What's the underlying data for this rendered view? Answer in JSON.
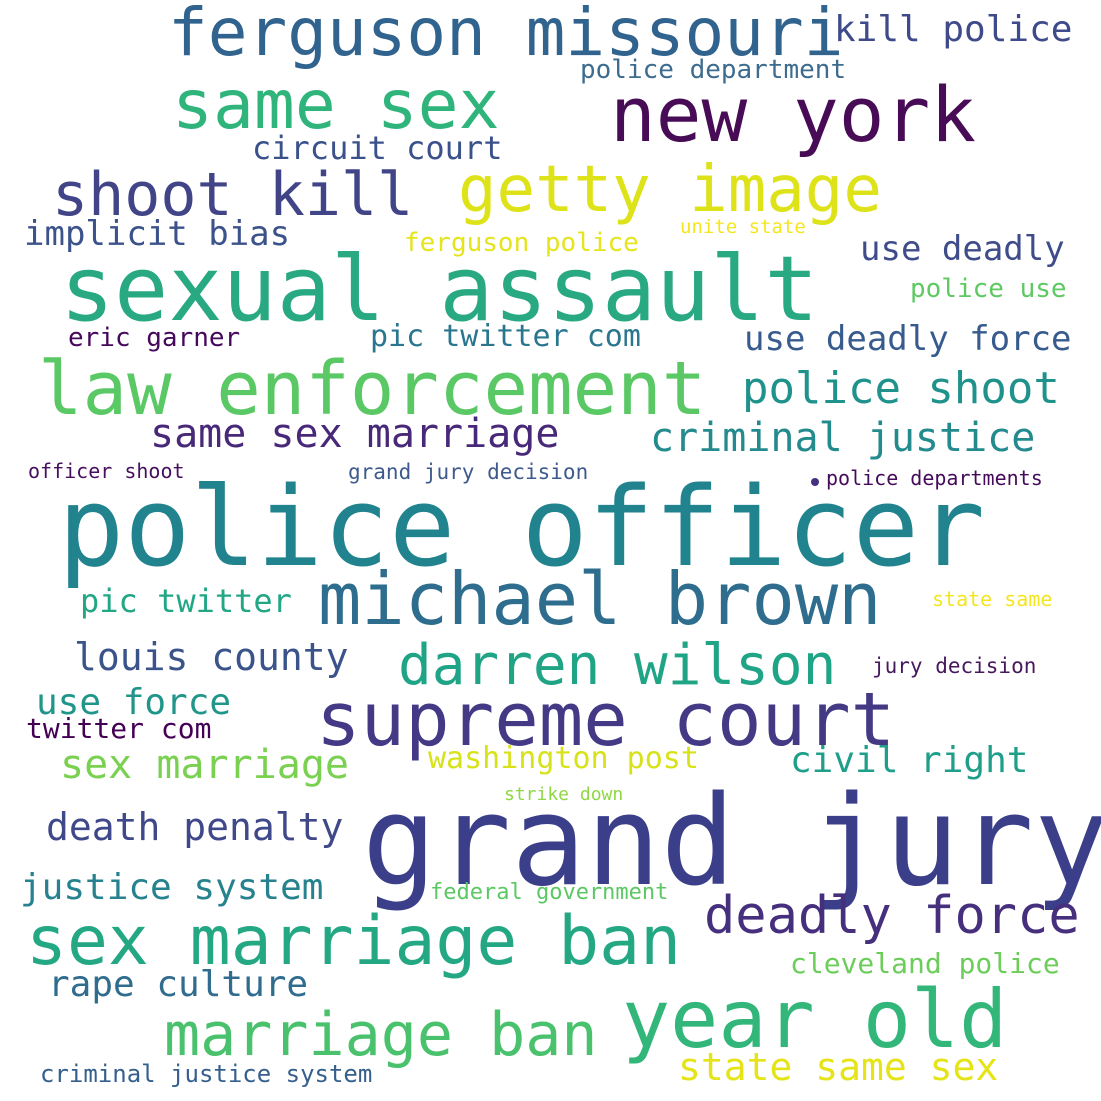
{
  "wordcloud": {
    "background": "#ffffff",
    "words": [
      {
        "text": "police officer",
        "color": "#21838e"
      },
      {
        "text": "grand jury",
        "color": "#3b3f8a"
      },
      {
        "text": "sexual assault",
        "color": "#29a981"
      },
      {
        "text": "law enforcement",
        "color": "#5ac864"
      },
      {
        "text": "supreme court",
        "color": "#433985"
      },
      {
        "text": "new york",
        "color": "#470c55"
      },
      {
        "text": "michael brown",
        "color": "#2e6d8e"
      },
      {
        "text": "year old",
        "color": "#32b67a"
      },
      {
        "text": "ferguson missouri",
        "color": "#30638e"
      },
      {
        "text": "same sex",
        "color": "#2fb47c"
      },
      {
        "text": "getty image",
        "color": "#dde318"
      },
      {
        "text": "sex marriage ban",
        "color": "#24a884"
      },
      {
        "text": "shoot kill",
        "color": "#414487"
      },
      {
        "text": "darren wilson",
        "color": "#20a486"
      },
      {
        "text": "marriage ban",
        "color": "#4ac16d"
      },
      {
        "text": "deadly force",
        "color": "#46307e"
      },
      {
        "text": "police shoot",
        "color": "#20928c"
      },
      {
        "text": "same sex marriage",
        "color": "#482878"
      },
      {
        "text": "criminal justice",
        "color": "#238a8d"
      },
      {
        "text": "sex marriage",
        "color": "#7ad151"
      },
      {
        "text": "louis county",
        "color": "#3a538b"
      },
      {
        "text": "death penalty",
        "color": "#3f4889"
      },
      {
        "text": "justice system",
        "color": "#26828e"
      },
      {
        "text": "rape culture",
        "color": "#2f6c8e"
      },
      {
        "text": "state same sex",
        "color": "#e5e419"
      },
      {
        "text": "civil right",
        "color": "#1f9e89"
      },
      {
        "text": "kill police",
        "color": "#3e4a89"
      },
      {
        "text": "circuit court",
        "color": "#3b518b"
      },
      {
        "text": "implicit bias",
        "color": "#3b528b"
      },
      {
        "text": "use deadly",
        "color": "#3e4c8a"
      },
      {
        "text": "use deadly force",
        "color": "#375b8d"
      },
      {
        "text": "pic twitter",
        "color": "#22a785"
      },
      {
        "text": "use force",
        "color": "#20958a"
      },
      {
        "text": "pic twitter com",
        "color": "#2a768e"
      },
      {
        "text": "twitter com",
        "color": "#440154"
      },
      {
        "text": "eric garner",
        "color": "#46085c"
      },
      {
        "text": "washington post",
        "color": "#d7e219"
      },
      {
        "text": "cleveland police",
        "color": "#6ccd5a"
      },
      {
        "text": "police department",
        "color": "#3d6c8e"
      },
      {
        "text": "ferguson police",
        "color": "#e6e41c"
      },
      {
        "text": "police use",
        "color": "#5ec962"
      },
      {
        "text": "criminal justice system",
        "color": "#35608d"
      },
      {
        "text": "federal government",
        "color": "#5bc863"
      },
      {
        "text": "grand jury decision",
        "color": "#3e5a8c"
      },
      {
        "text": "jury decision",
        "color": "#46185c"
      },
      {
        "text": "police departments",
        "color": "#450b5a"
      },
      {
        "text": "officer shoot",
        "color": "#470f5d"
      },
      {
        "text": "state same",
        "color": "#f3e51e"
      },
      {
        "text": "strike down",
        "color": "#8fd744"
      },
      {
        "text": "unite state",
        "color": "#f4e61e"
      }
    ],
    "dot_color": "#46317e"
  }
}
